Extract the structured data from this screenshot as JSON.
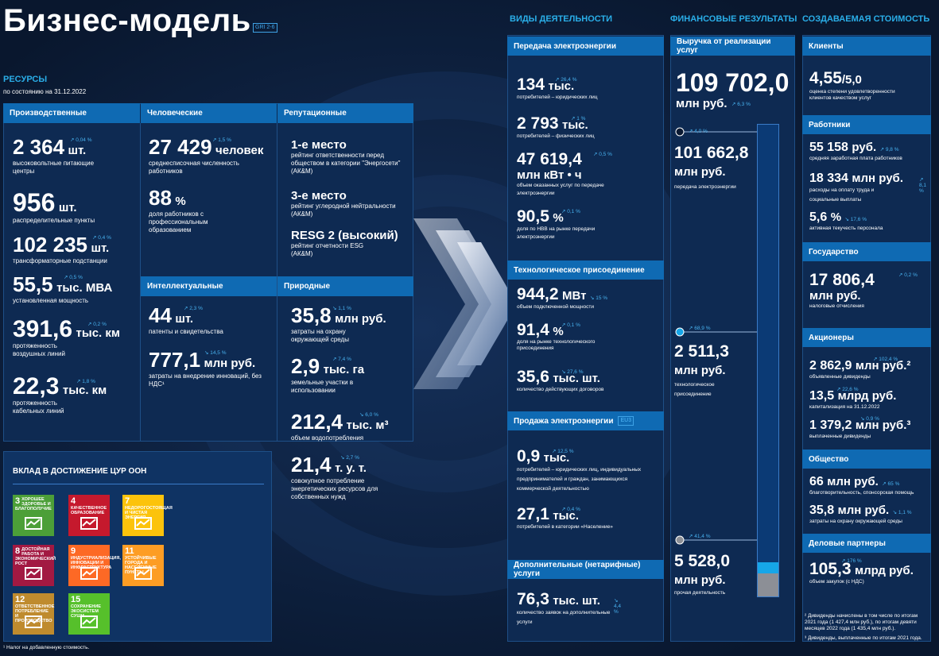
{
  "title": "Бизнес-модель",
  "gri": "GRI 2-6",
  "resources": {
    "title": "РЕСУРСЫ",
    "date": "по состоянию на 31.12.2022"
  },
  "cols": {
    "activities": "ВИДЫ ДЕЯТЕЛЬНОСТИ",
    "finance": "ФИНАНСОВЫЕ РЕЗУЛЬТАТЫ",
    "value": "СОЗДАВАЕМАЯ СТОИМОСТЬ"
  },
  "production": {
    "header": "Производственные",
    "items": [
      {
        "num": "2 364",
        "unit": "шт.",
        "chg": "↗ 0,04 %",
        "label": "высоковольтные питающие центры"
      },
      {
        "num": "956",
        "unit": "шт.",
        "chg": "",
        "label": "распределительные пункты"
      },
      {
        "num": "102 235",
        "unit": "шт.",
        "chg": "↗ 0,4 %",
        "label": "трансформаторные подстанции"
      },
      {
        "num": "55,5",
        "unit": "тыс. МВА",
        "chg": "↗ 0,5 %",
        "label": "установленная мощность"
      },
      {
        "num": "391,6",
        "unit": "тыс. км",
        "chg": "↗ 0,2 %",
        "label": "протяженность воздушных линий"
      },
      {
        "num": "22,3",
        "unit": "тыс. км",
        "chg": "↗ 1,8 %",
        "label": "протяженность кабельных линий"
      }
    ]
  },
  "human": {
    "header": "Человеческие",
    "items": [
      {
        "num": "27 429",
        "unit": "человек",
        "chg": "↗ 1,5 %",
        "label": "среднесписочная численность работников"
      },
      {
        "num": "88",
        "unit": "%",
        "chg": "",
        "label": "доля работников с профессиональным образованием"
      }
    ]
  },
  "reput": {
    "header": "Репутационные",
    "items": [
      {
        "head": "1-е место",
        "label": "рейтинг ответственности перед обществом в категории \"Энергосети\" (АК&М)"
      },
      {
        "head": "3-е место",
        "label": "рейтинг углеродной нейтральности (АК&М)"
      },
      {
        "head": "RESG 2 (высокий)",
        "label": "рейтинг отчетности ESG (АК&М)"
      }
    ]
  },
  "intel": {
    "header": "Интеллектуальные",
    "items": [
      {
        "num": "44",
        "unit": "шт.",
        "chg": "↗ 2,3 %",
        "label": "патенты и свидетельства"
      },
      {
        "num": "777,1",
        "unit": "млн руб.",
        "chg": "↘ 14,5 %",
        "label": "затраты на внедрение инноваций, без НДС¹"
      }
    ]
  },
  "natural": {
    "header": "Природные",
    "items": [
      {
        "num": "35,8",
        "unit": "млн руб.",
        "chg": "↘ 1,1 %",
        "label": "затраты на охрану окружающей среды"
      },
      {
        "num": "2,9",
        "unit": "тыс. га",
        "chg": "↗ 7,4 %",
        "label": "земельные участки в использовании"
      },
      {
        "num": "212,4",
        "unit": "тыс. м³",
        "chg": "↘ 6,0 %",
        "label": "объем водопотребления"
      },
      {
        "num": "21,4",
        "unit": "т. у. т.",
        "chg": "↘ 2,7 %",
        "label": "совокупное потребление энергетических ресурсов для собственных нужд"
      }
    ]
  },
  "sdg": {
    "header": "ВКЛАД В ДОСТИЖЕНИЕ ЦУР ООН",
    "goals": [
      {
        "n": "3",
        "t": "ХОРОШЕЕ ЗДОРОВЬЕ И БЛАГОПОЛУЧИЕ",
        "c": "#4c9f38"
      },
      {
        "n": "4",
        "t": "КАЧЕСТВЕННОЕ ОБРАЗОВАНИЕ",
        "c": "#c5192d"
      },
      {
        "n": "7",
        "t": "НЕДОРОГОСТОЯЩАЯ И ЧИСТАЯ ЭНЕРГИЯ",
        "c": "#fcc30b"
      },
      {
        "n": "8",
        "t": "ДОСТОЙНАЯ РАБОТА И ЭКОНОМИЧЕСКИЙ РОСТ",
        "c": "#a21942"
      },
      {
        "n": "9",
        "t": "ИНДУСТРИАЛИЗАЦИЯ, ИННОВАЦИИ И ИНФРАСТРУКТУРА",
        "c": "#fd6925"
      },
      {
        "n": "11",
        "t": "УСТОЙЧИВЫЕ ГОРОДА И НАСЕЛЕННЫЕ ПУНКТЫ",
        "c": "#fd9d24"
      },
      {
        "n": "12",
        "t": "ОТВЕТСТВЕННОЕ ПОТРЕБЛЕНИЕ И ПРОИЗВОДСТВО",
        "c": "#bf8b2e"
      },
      {
        "n": "15",
        "t": "СОХРАНЕНИЕ ЭКОСИСТЕМ СУШИ",
        "c": "#56c02b"
      }
    ]
  },
  "footnote": "¹ Налог на добавленную стоимость.",
  "transfer": {
    "header": "Передача электроэнергии",
    "items": [
      {
        "num": "134",
        "unit": "тыс.",
        "chg": "↗ 26,4 %",
        "label": "потребителей – юридических лиц"
      },
      {
        "num": "2 793",
        "unit": "тыс.",
        "chg": "↗ 1 %",
        "label": "потребителей – физических лиц"
      },
      {
        "num": "47 619,4",
        "unit": "млн кВт • ч",
        "chg": "↗ 0,5 %",
        "label": "объем оказанных услуг по передаче электроэнергии"
      },
      {
        "num": "90,5",
        "unit": "%",
        "chg": "↗ 0,1 %",
        "label": "доля по НВВ на рынке передачи электроэнергии"
      }
    ]
  },
  "techcon": {
    "header": "Технологическое присоединение",
    "items": [
      {
        "num": "944,2",
        "unit": "МВт",
        "chg": "↘ 15 %",
        "label": "объем подключенной мощности"
      },
      {
        "num": "91,4",
        "unit": "%",
        "chg": "↗ 0,1 %",
        "label": "доля на рынке технологического присоединения"
      },
      {
        "num": "35,6",
        "unit": "тыс. шт.",
        "chg": "↘ 27,6 %",
        "label": "количество действующих договоров"
      }
    ]
  },
  "sales": {
    "header": "Продажа электроэнергии",
    "badge": "EU3",
    "items": [
      {
        "num": "0,9",
        "unit": "тыс.",
        "chg": "↗ 12,5 %",
        "label": "потребителей – юридических лиц, индивидуальных предпринимателей и граждан, занимающихся коммерческой деятельностью"
      },
      {
        "num": "27,1",
        "unit": "тыс.",
        "chg": "↗ 0,4 %",
        "label": "потребителей в категории «Население»"
      }
    ]
  },
  "extra": {
    "header": "Дополнительные (нетарифные) услуги",
    "items": [
      {
        "num": "76,3",
        "unit": "тыс. шт.",
        "chg": "↘ 4,4 %",
        "label": "количество заявок на дополнительные услуги"
      }
    ]
  },
  "revenue": {
    "header": "Выручка от реализации услуг",
    "total": "109 702,0",
    "total_unit": "млн руб.",
    "total_chg": "↗ 6,3 %",
    "parts": [
      {
        "chg": "↗ 4,0 %",
        "num": "101 662,8",
        "unit": "млн руб.",
        "label": "передача электроэнергии"
      },
      {
        "chg": "↗ 68,9 %",
        "num": "2 511,3",
        "unit": "млн руб.",
        "label": "технологическое присоединение"
      },
      {
        "chg": "↗ 41,4 %",
        "num": "5 528,0",
        "unit": "млн руб.",
        "label": "прочая деятельность"
      }
    ]
  },
  "clients": {
    "header": "Клиенты",
    "num": "4,55",
    "den": "/5,0",
    "label": "оценка степени удовлетворенности клиентов качеством услуг"
  },
  "workers": {
    "header": "Работники",
    "items": [
      {
        "num": "55 158",
        "unit": "руб.",
        "chg": "↗ 9,8 %",
        "label": "средняя заработная плата работников"
      },
      {
        "num": "18 334",
        "unit": "млн руб.",
        "chg": "↗ 8,1 %",
        "label": "расходы на оплату труда и социальные выплаты"
      },
      {
        "num": "5,6",
        "unit": "%",
        "chg": "↘ 17,6 %",
        "label": "активная текучесть персонала"
      }
    ]
  },
  "state": {
    "header": "Государство",
    "num": "17 806,4",
    "unit": "млн руб.",
    "chg": "↗ 0,2 %",
    "label": "налоговые отчисления"
  },
  "share": {
    "header": "Акционеры",
    "items": [
      {
        "num": "2 862,9",
        "unit": "млн руб.²",
        "chg": "↗ 102,4 %",
        "label": "объявленные дивиденды"
      },
      {
        "num": "13,5",
        "unit": "млрд руб.",
        "chg": "↗ 22,6 %",
        "label": "капитализация на 31.12.2022"
      },
      {
        "num": "1 379,2",
        "unit": "млн руб.³",
        "chg": "↘ 0,9 %",
        "label": "выплаченные дивиденды"
      }
    ]
  },
  "society": {
    "header": "Общество",
    "items": [
      {
        "num": "66",
        "unit": "млн руб.",
        "chg": "↗ 65 %",
        "label": "благотворительность, спонсорская помощь"
      },
      {
        "num": "35,8",
        "unit": "млн руб.",
        "chg": "↘ 1,1 %",
        "label": "затраты на охрану окружающей среды"
      }
    ]
  },
  "partners": {
    "header": "Деловые партнеры",
    "num": "105,3",
    "unit": "млрд руб.",
    "chg": "↗ 176 %",
    "label": "объем закупок (с НДС)"
  },
  "notes": [
    "² Дивиденды начислены в том числе по итогам 2021 года (1 427,4 млн руб.), по итогам девяти месяцев 2022 года (1 435,4 млн руб.).",
    "³ Дивиденды, выплаченные по итогам 2021 года."
  ],
  "bar_shares": {
    "transfer": 0.927,
    "techcon": 0.023,
    "other": 0.05
  }
}
